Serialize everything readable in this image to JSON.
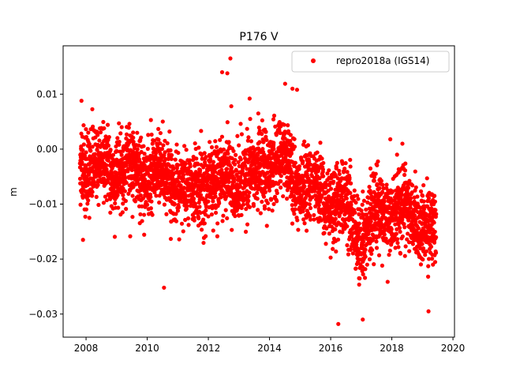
{
  "chart_data": {
    "type": "scatter",
    "title": "P176 V",
    "xlabel": "",
    "ylabel": "m",
    "xlim": [
      2007.25,
      2020.05
    ],
    "ylim": [
      -0.0342,
      0.0188
    ],
    "x_ticks": [
      2008,
      2010,
      2012,
      2014,
      2016,
      2018,
      2020
    ],
    "x_tick_labels": [
      "2008",
      "2010",
      "2012",
      "2014",
      "2016",
      "2018",
      "2020"
    ],
    "y_ticks": [
      0.01,
      0.0,
      -0.01,
      -0.02,
      -0.03
    ],
    "y_tick_labels": [
      "0.01",
      "0.00",
      "−0.01",
      "−0.02",
      "−0.03"
    ],
    "grid": false,
    "legend_position": "top-right",
    "series": [
      {
        "name": "repro2018a (IGS14)",
        "color": "#ff0000",
        "marker": "circle",
        "trend": {
          "x": [
            2007.8,
            2009.0,
            2010.0,
            2011.0,
            2011.5,
            2012.0,
            2012.6,
            2013.2,
            2014.0,
            2014.6,
            2015.0,
            2015.5,
            2016.0,
            2016.5,
            2017.0,
            2017.5,
            2018.0,
            2018.5,
            2019.0,
            2019.45
          ],
          "y": [
            -0.003,
            -0.004,
            -0.004,
            -0.006,
            -0.009,
            -0.005,
            -0.006,
            -0.005,
            -0.003,
            -0.003,
            -0.006,
            -0.008,
            -0.009,
            -0.011,
            -0.016,
            -0.012,
            -0.011,
            -0.012,
            -0.013,
            -0.016
          ]
        },
        "scatter_sd": 0.0035,
        "n_points": 3600,
        "outliers": {
          "x": [
            2012.72,
            2012.45,
            2012.62,
            2014.75,
            2014.9,
            2007.85,
            2007.9,
            2010.55,
            2016.25,
            2017.05,
            2019.2,
            2013.35,
            2012.75,
            2017.95
          ],
          "y": [
            0.0165,
            0.014,
            0.0138,
            0.011,
            0.0108,
            0.0088,
            -0.0165,
            -0.0252,
            -0.0318,
            -0.031,
            -0.0295,
            0.0092,
            0.0078,
            0.0018
          ]
        }
      }
    ]
  }
}
